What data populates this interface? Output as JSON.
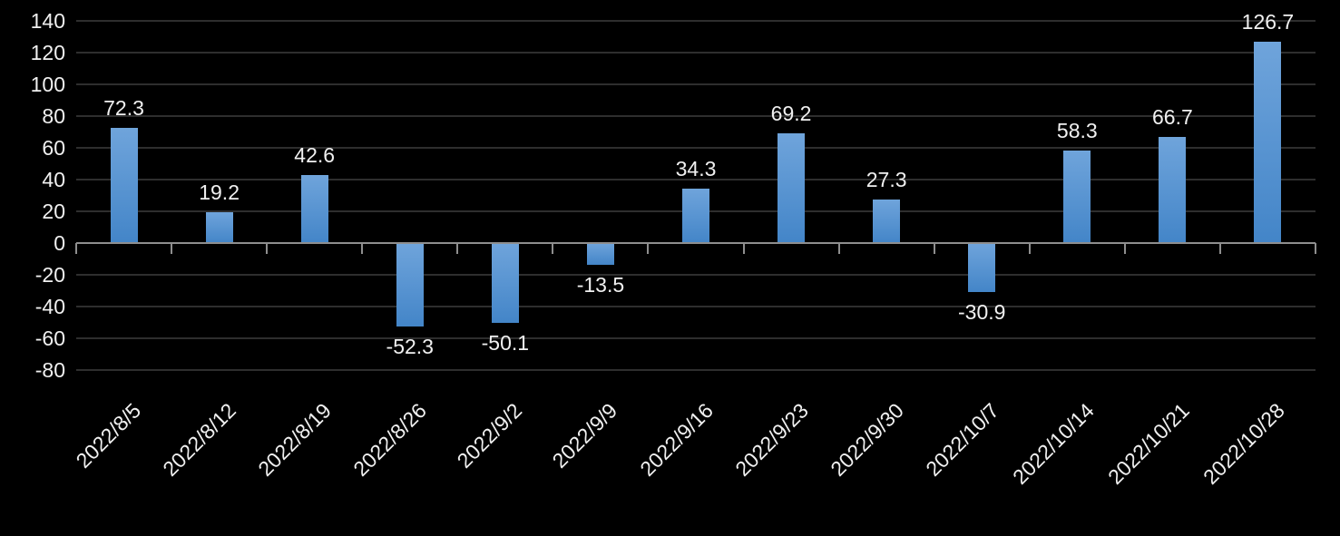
{
  "chart_data": {
    "type": "bar",
    "title": "",
    "xlabel": "",
    "ylabel": "",
    "categories": [
      "2022/8/5",
      "2022/8/12",
      "2022/8/19",
      "2022/8/26",
      "2022/9/2",
      "2022/9/9",
      "2022/9/16",
      "2022/9/23",
      "2022/9/30",
      "2022/10/7",
      "2022/10/14",
      "2022/10/21",
      "2022/10/28"
    ],
    "values": [
      72.3,
      19.2,
      42.6,
      -52.3,
      -50.1,
      -13.5,
      34.3,
      69.2,
      27.3,
      -30.9,
      58.3,
      66.7,
      126.7
    ],
    "data_labels": [
      "72.3",
      "19.2",
      "42.6",
      "-52.3",
      "-50.1",
      "-13.5",
      "34.3",
      "69.2",
      "27.3",
      "-30.9",
      "58.3",
      "66.7",
      "126.7"
    ],
    "ylim": [
      -80,
      140
    ],
    "ytick_step": 20,
    "ytick_labels": [
      "140",
      "120",
      "100",
      "80",
      "60",
      "40",
      "20",
      "0",
      "-20",
      "-40",
      "-60",
      "-80"
    ],
    "grid": true,
    "legend": "none",
    "colors": {
      "background": "#000000",
      "bar_gradient_top": "#6fa4db",
      "bar_gradient_bottom": "#4385c8",
      "gridline": "#2e2e2e",
      "zero_axis": "#8e8e8e",
      "text": "#f0f0f0"
    }
  }
}
